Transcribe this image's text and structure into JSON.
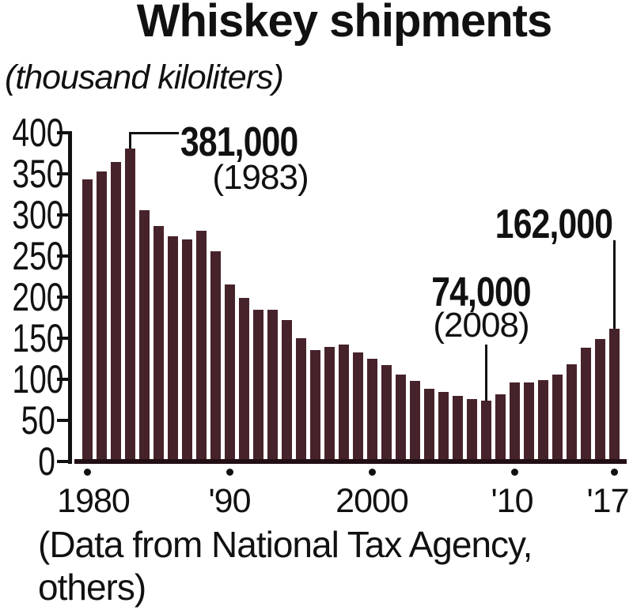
{
  "title": "Whiskey shipments",
  "subtitle": "(thousand kiloliters)",
  "source": {
    "line1": "(Data from National Tax Agency,",
    "line2": "others)"
  },
  "colors": {
    "bar": "#46232A",
    "axis": "#111111",
    "baseline": "#220F15",
    "text": "#111111"
  },
  "chart_data": {
    "type": "bar",
    "title": "Whiskey shipments",
    "unit": "thousand kiloliters",
    "xlabel": "",
    "ylabel": "(thousand kiloliters)",
    "ylim": [
      0,
      400
    ],
    "ytick_step": 50,
    "ytick_labels": [
      "400",
      "350",
      "300",
      "250",
      "200",
      "150",
      "100",
      "50",
      "0"
    ],
    "grid": false,
    "legend": false,
    "x": [
      1980,
      1981,
      1982,
      1983,
      1984,
      1985,
      1986,
      1987,
      1988,
      1989,
      1990,
      1991,
      1992,
      1993,
      1994,
      1995,
      1996,
      1997,
      1998,
      1999,
      2000,
      2001,
      2002,
      2003,
      2004,
      2005,
      2006,
      2007,
      2008,
      2009,
      2010,
      2011,
      2012,
      2013,
      2014,
      2015,
      2016,
      2017
    ],
    "values": [
      343,
      353,
      364,
      381,
      306,
      287,
      274,
      270,
      281,
      256,
      215,
      199,
      185,
      185,
      172,
      150,
      136,
      139,
      142,
      133,
      125,
      117,
      106,
      98,
      88,
      85,
      80,
      76,
      74,
      82,
      96,
      96,
      99,
      106,
      118,
      138,
      149,
      162
    ],
    "xtick_labels": [
      {
        "year": 1980,
        "label": "1980"
      },
      {
        "year": 1990,
        "label": "'90"
      },
      {
        "year": 2000,
        "label": "2000"
      },
      {
        "year": 2010,
        "label": "'10"
      },
      {
        "year": 2017,
        "label": "'17"
      }
    ],
    "annotations": [
      {
        "year": 1983,
        "label": "381,000",
        "detail": "(1983)"
      },
      {
        "year": 2008,
        "label": "74,000",
        "detail": "(2008)"
      },
      {
        "year": 2017,
        "label": "162,000",
        "detail": ""
      }
    ]
  }
}
